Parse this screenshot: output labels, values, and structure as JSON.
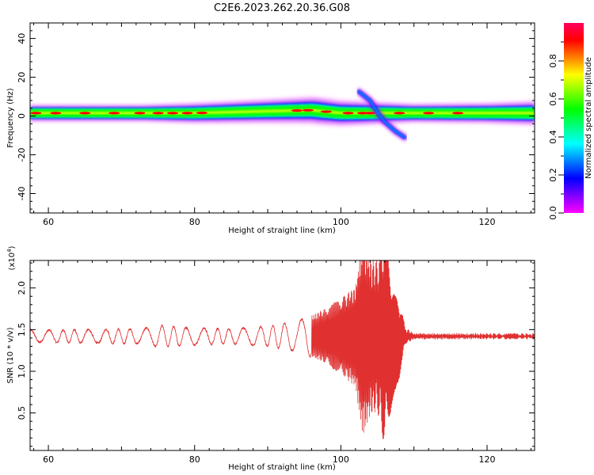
{
  "figure": {
    "title": "C2E6.2023.262.20.36.G08"
  },
  "colors": {
    "snr_line": "#e03030",
    "colormap": [
      "#ff00ff",
      "#7f00ff",
      "#0000ff",
      "#0080ff",
      "#00ffff",
      "#00ff80",
      "#00ff00",
      "#80ff00",
      "#ffff00",
      "#ff8000",
      "#ff0000",
      "#ff0060"
    ]
  },
  "chart_data": [
    {
      "type": "heatmap",
      "title": "",
      "xlabel": "Height of straight line (km)",
      "ylabel": "Frequency (Hz)",
      "xlim": [
        57.5,
        126.5
      ],
      "ylim": [
        -50,
        48
      ],
      "xticks": [
        60,
        80,
        100,
        120
      ],
      "yticks": [
        -40,
        -20,
        0,
        20,
        40
      ],
      "ytick_labels": [
        "-40",
        "-20",
        "0",
        "20",
        "40"
      ],
      "grid": false,
      "colorbar": {
        "label": "Normalized spectral amplitude",
        "range": [
          0,
          1
        ],
        "ticks": [
          0.0,
          0.2,
          0.4,
          0.6,
          0.8
        ],
        "tick_labels": [
          "0.0",
          "0.2",
          "0.4",
          "0.6",
          "0.8"
        ]
      },
      "band": {
        "center_freq_hz": 1.5,
        "core_points": [
          [
            58,
            1.5
          ],
          [
            70,
            1.5
          ],
          [
            80,
            1.5
          ],
          [
            90,
            2.5
          ],
          [
            96,
            3
          ],
          [
            100,
            1.5
          ],
          [
            104,
            1.5
          ],
          [
            106,
            1.5
          ],
          [
            110,
            1.5
          ],
          [
            126,
            1.5
          ]
        ],
        "halo_width_hz": [
          [
            58,
            3
          ],
          [
            73,
            3
          ],
          [
            80,
            4
          ],
          [
            90,
            5
          ],
          [
            97,
            6
          ],
          [
            103,
            5
          ],
          [
            110,
            3.5
          ],
          [
            120,
            4
          ],
          [
            126,
            5
          ]
        ]
      },
      "hot_spots_km": [
        58.3,
        61,
        65,
        69,
        72.5,
        75,
        77,
        79,
        81,
        94,
        95.5,
        98,
        101,
        103,
        104,
        108,
        112,
        116
      ],
      "diagonal_feature": [
        [
          102.5,
          12.5
        ],
        [
          104,
          8
        ],
        [
          105,
          2
        ],
        [
          106,
          -3
        ],
        [
          107.5,
          -8
        ],
        [
          108.7,
          -11
        ]
      ]
    },
    {
      "type": "line",
      "title": "",
      "xlabel": "Height of straight line (km)",
      "ylabel": "SNR (10 * v/v)",
      "y_multiplier_label": "(x10",
      "y_multiplier_exponent": "4",
      "y_multiplier_close": ")",
      "xlim": [
        57.5,
        126.5
      ],
      "ylim": [
        0.05,
        2.33
      ],
      "xticks": [
        60,
        80,
        100,
        120
      ],
      "yticks": [
        0.5,
        1.0,
        1.5,
        2.0
      ],
      "ytick_labels": [
        "0.5",
        "1.0",
        "1.5",
        "2.0"
      ],
      "grid": false,
      "series": [
        {
          "baseline": 1.42,
          "envelope": [
            [
              57.5,
              0.07
            ],
            [
              64,
              0.08
            ],
            [
              73,
              0.09
            ],
            [
              75,
              0.13
            ],
            [
              80,
              0.1
            ],
            [
              85,
              0.09
            ],
            [
              90,
              0.12
            ],
            [
              94,
              0.18
            ],
            [
              96,
              0.25
            ],
            [
              98,
              0.33
            ],
            [
              100,
              0.45
            ],
            [
              102,
              0.6
            ],
            [
              103,
              1.2
            ],
            [
              104,
              0.95
            ],
            [
              105,
              0.9
            ],
            [
              106,
              1.35
            ],
            [
              107,
              0.8
            ],
            [
              108,
              0.5
            ],
            [
              108.8,
              0.1
            ],
            [
              110,
              0.03
            ],
            [
              126.5,
              0.03
            ]
          ],
          "oscillation_cycles_per_km": 0.52
        }
      ]
    }
  ]
}
